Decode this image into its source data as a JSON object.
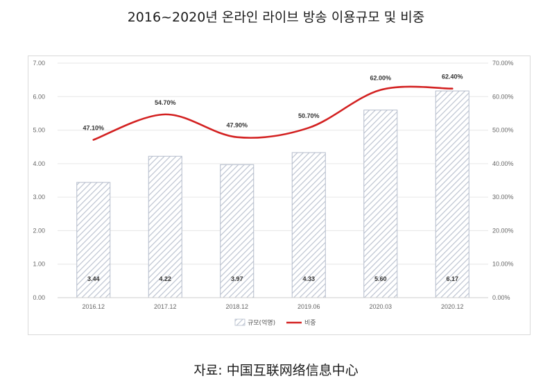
{
  "title": "2016~2020년 온라인 라이브 방송 이용규모 및 비중",
  "source": "자료: 中国互联网络信息中心",
  "chart_data": {
    "type": "bar+line",
    "categories": [
      "2016.12",
      "2017.12",
      "2018.12",
      "2019.06",
      "2020.03",
      "2020.12"
    ],
    "series": [
      {
        "name": "규모(억명)",
        "type": "bar",
        "axis": "left",
        "values": [
          3.44,
          4.22,
          3.97,
          4.33,
          5.6,
          6.17
        ],
        "labels": [
          "3.44",
          "4.22",
          "3.97",
          "4.33",
          "5.60",
          "6.17"
        ]
      },
      {
        "name": "비중",
        "type": "line",
        "axis": "right",
        "values": [
          47.1,
          54.7,
          47.9,
          50.7,
          62.0,
          62.4
        ],
        "labels": [
          "47.10%",
          "54.70%",
          "47.90%",
          "50.70%",
          "62.00%",
          "62.40%"
        ]
      }
    ],
    "y_left": {
      "range": [
        0,
        7
      ],
      "ticks": [
        "0.00",
        "1.00",
        "2.00",
        "3.00",
        "4.00",
        "5.00",
        "6.00",
        "7.00"
      ]
    },
    "y_right": {
      "range": [
        0,
        70
      ],
      "ticks": [
        "0.00%",
        "10.00%",
        "20.00%",
        "30.00%",
        "40.00%",
        "50.00%",
        "60.00%",
        "70.00%"
      ]
    },
    "grid": true,
    "legend": "bottom-center",
    "colors": {
      "bar_stroke": "#b4bccb",
      "hatch": "#bcc3d0",
      "line": "#d32121",
      "grid": "#e6e6e6"
    }
  }
}
